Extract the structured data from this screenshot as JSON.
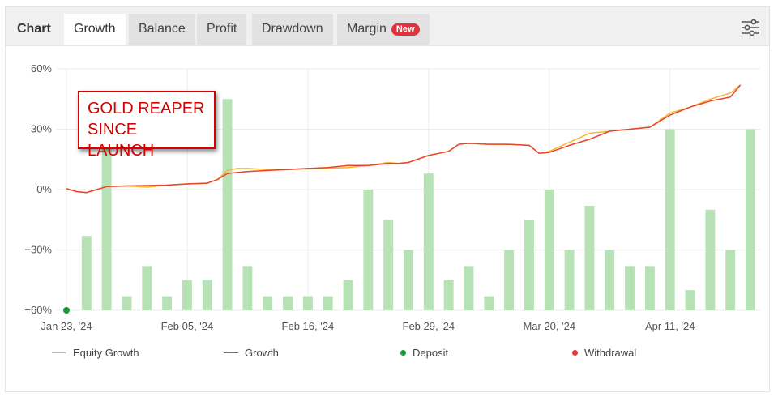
{
  "tabs": {
    "title": "Chart",
    "items": [
      {
        "label": "Growth",
        "active": true
      },
      {
        "label": "Balance",
        "active": false
      },
      {
        "label": "Profit",
        "active": false
      },
      {
        "label": "Drawdown",
        "active": false
      },
      {
        "label": "Margin",
        "active": false,
        "badge": "New"
      }
    ],
    "settings_icon": "sliders-icon"
  },
  "annotation": {
    "line1": "GOLD REAPER",
    "line2": "SINCE LAUNCH",
    "color": "#d50000"
  },
  "legend": [
    {
      "label": "Equity Growth",
      "kind": "line",
      "color": "#f7b731"
    },
    {
      "label": "Growth",
      "kind": "line",
      "color": "#e8432b"
    },
    {
      "label": "Deposit",
      "kind": "dot",
      "color": "#1a9e3a"
    },
    {
      "label": "Withdrawal",
      "kind": "dot",
      "color": "#e03c3c"
    }
  ],
  "chart_data": {
    "type": "line",
    "ylim": [
      -60,
      60
    ],
    "yticks": [
      60,
      30,
      0,
      -30,
      -60
    ],
    "ytick_labels": [
      "60%",
      "30%",
      "0%",
      "−30%",
      "−60%"
    ],
    "xlim": [
      0,
      34
    ],
    "xticks": [
      0,
      6,
      12,
      18,
      24,
      30
    ],
    "xtick_labels": [
      "Jan 23, '24",
      "Feb 05, '24",
      "Feb 16, '24",
      "Feb 29, '24",
      "Mar 20, '24",
      "Apr 11, '24"
    ],
    "grid": true,
    "bar_color": "#b6e2b6",
    "bars": {
      "x": [
        1,
        2,
        3,
        4,
        5,
        6,
        7,
        8,
        9,
        10,
        11,
        12,
        13,
        14,
        15,
        16,
        17,
        18,
        19,
        20,
        21,
        22,
        23,
        24,
        25,
        26,
        27,
        28,
        29,
        30,
        31,
        32,
        33,
        34
      ],
      "values": [
        -23,
        25,
        -53,
        -38,
        -53,
        -45,
        -45,
        45,
        -38,
        -53,
        -53,
        -53,
        -53,
        -45,
        0,
        -15,
        -30,
        8,
        -45,
        -38,
        -53,
        -30,
        -15,
        0,
        -30,
        -8,
        -30,
        -38,
        -38,
        30,
        -50,
        -10,
        -30,
        30
      ]
    },
    "series": [
      {
        "name": "Growth",
        "color": "#e8432b",
        "x": [
          0,
          0.5,
          1,
          1.5,
          2,
          3,
          4,
          5,
          6,
          7,
          7.5,
          8,
          8.5,
          9,
          10,
          11,
          12,
          13,
          14,
          15,
          16,
          16.5,
          17,
          18,
          19,
          19.5,
          20,
          21,
          22,
          23,
          23.5,
          24,
          25,
          26,
          27,
          28,
          29,
          30,
          31,
          32,
          33,
          33.5
        ],
        "y": [
          0.5,
          -1,
          -1.5,
          0,
          1.5,
          1.8,
          2,
          2.2,
          2.8,
          3.2,
          5,
          8,
          8.5,
          9,
          9.5,
          10,
          10.5,
          11,
          12,
          12,
          13,
          13,
          13.5,
          17,
          19,
          22.5,
          23,
          22.5,
          22.5,
          22,
          18,
          18.5,
          22,
          25,
          29,
          30,
          31,
          37,
          41,
          44,
          46,
          52
        ]
      },
      {
        "name": "Equity Growth",
        "color": "#f7b731",
        "x": [
          0,
          0.5,
          1,
          1.5,
          2,
          3,
          4,
          5,
          6,
          7,
          7.5,
          8,
          8.5,
          9,
          10,
          11,
          12,
          13,
          14,
          15,
          16,
          16.5,
          17,
          18,
          19,
          19.5,
          20,
          21,
          22,
          23,
          23.5,
          24,
          25,
          26,
          27,
          28,
          29,
          30,
          31,
          32,
          33,
          33.5
        ],
        "y": [
          0.5,
          -1,
          -1.5,
          0,
          1.5,
          1.8,
          1.2,
          2.2,
          2.8,
          3.2,
          5,
          9.5,
          10.5,
          10.5,
          10,
          10,
          10.5,
          10.5,
          11,
          12,
          13.5,
          13,
          13.5,
          17,
          19,
          22.5,
          23,
          22.5,
          22.5,
          22,
          18,
          19,
          23.5,
          28,
          29,
          30,
          31,
          38,
          41,
          45,
          48,
          52
        ]
      }
    ],
    "deposits": [
      {
        "x": 0,
        "y": -60
      }
    ]
  }
}
